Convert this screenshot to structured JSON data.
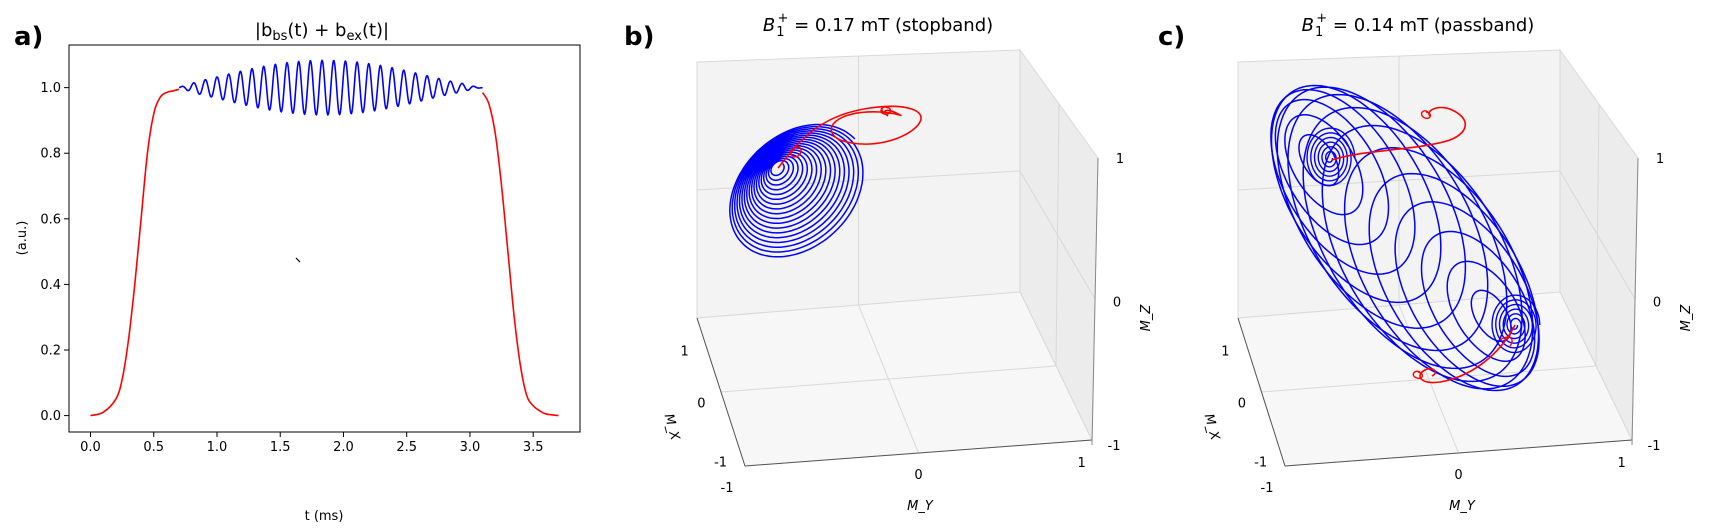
{
  "panels": {
    "a": {
      "label": "a)",
      "title": "|b_bs(t) + b_ex(t)|",
      "title_html": [
        "|b",
        "bs",
        "(t) + b",
        "ex",
        "(t)|"
      ]
    },
    "b": {
      "label": "b)",
      "title_parts": [
        "B",
        "1",
        "+",
        " = 0.17 mT (stopband)"
      ]
    },
    "c": {
      "label": "c)",
      "title_parts": [
        "B",
        "1",
        "+",
        " = 0.14 mT (passband)"
      ]
    }
  },
  "chart_data": [
    {
      "type": "line",
      "panel": "a",
      "xlabel": "t (ms)",
      "ylabel": "(a.u.)",
      "xlim": [
        -0.17,
        3.87
      ],
      "ylim": [
        -0.05,
        1.13
      ],
      "xticks": [
        "0.0",
        "0.5",
        "1.0",
        "1.5",
        "2.0",
        "2.5",
        "3.0",
        "3.5"
      ],
      "xtick_values": [
        0.0,
        0.5,
        1.0,
        1.5,
        2.0,
        2.5,
        3.0,
        3.5
      ],
      "yticks": [
        "0.0",
        "0.2",
        "0.4",
        "0.6",
        "0.8",
        "1.0"
      ],
      "ytick_values": [
        0.0,
        0.2,
        0.4,
        0.6,
        0.8,
        1.0
      ],
      "series": [
        {
          "color": "#ff0000",
          "x": [
            0.0,
            0.1,
            0.2,
            0.25,
            0.3,
            0.35,
            0.4,
            0.45,
            0.5,
            0.55,
            0.6,
            0.65,
            0.7
          ],
          "y": [
            0.0,
            0.01,
            0.05,
            0.11,
            0.23,
            0.4,
            0.6,
            0.8,
            0.92,
            0.97,
            0.985,
            0.99,
            0.995
          ]
        },
        {
          "color": "#0000ff",
          "x_start": 0.7,
          "x_end": 3.1,
          "baseline": 1.0,
          "cycles": 26,
          "max_amplitude": 0.075,
          "center": 1.85
        },
        {
          "color": "#ff0000",
          "x": [
            3.1,
            3.15,
            3.2,
            3.25,
            3.3,
            3.35,
            3.4,
            3.45,
            3.5,
            3.55,
            3.6,
            3.7
          ],
          "y": [
            0.985,
            0.95,
            0.86,
            0.7,
            0.5,
            0.3,
            0.15,
            0.06,
            0.03,
            0.015,
            0.005,
            0.0
          ]
        }
      ]
    },
    {
      "type": "3d-trajectory",
      "panel": "b",
      "xlabel": "M_X",
      "ylabel": "M_Y",
      "zlabel": "M_Z",
      "xticks": [
        "1",
        "0",
        "-1"
      ],
      "yticks": [
        "-1",
        "0",
        "1"
      ],
      "zticks": [
        "1",
        "0",
        "-1"
      ],
      "trajectory": "spiral",
      "series": [
        {
          "color": "#0000ff",
          "name_visible": false
        },
        {
          "color": "#ff0000",
          "name_visible": false
        }
      ]
    },
    {
      "type": "3d-trajectory",
      "panel": "c",
      "xlabel": "M_X",
      "ylabel": "M_Y",
      "zlabel": "M_Z",
      "xticks": [
        "1",
        "0",
        "-1"
      ],
      "yticks": [
        "-1",
        "0",
        "1"
      ],
      "zticks": [
        "1",
        "0",
        "-1"
      ],
      "trajectory": "sphere",
      "series": [
        {
          "color": "#0000ff",
          "name_visible": false
        },
        {
          "color": "#ff0000",
          "name_visible": false
        }
      ]
    }
  ]
}
